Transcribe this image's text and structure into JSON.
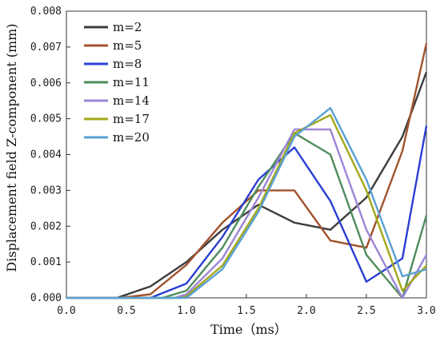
{
  "chart_data": {
    "type": "line",
    "xlabel": "Time（ms）",
    "ylabel": "Displacement field  Z-component  (mm)",
    "xlim": [
      0.0,
      3.0
    ],
    "ylim": [
      0.0,
      0.008
    ],
    "x_ticks": [
      "0.0",
      "0.5",
      "1.0",
      "1.5",
      "2.0",
      "2.5",
      "3.0"
    ],
    "y_ticks": [
      "0.000",
      "0.001",
      "0.002",
      "0.003",
      "0.004",
      "0.005",
      "0.006",
      "0.007",
      "0.008"
    ],
    "grid": false,
    "legend_position": "top-left",
    "series": [
      {
        "name": "m=2",
        "color": "#3d3d3d",
        "x": [
          0.0,
          0.42,
          0.7,
          1.0,
          1.3,
          1.6,
          1.9,
          2.2,
          2.5,
          2.8,
          3.0
        ],
        "y": [
          0.0,
          0.0,
          0.00032,
          0.001,
          0.0019,
          0.0026,
          0.0021,
          0.0019,
          0.0028,
          0.0045,
          0.0063
        ]
      },
      {
        "name": "m=5",
        "color": "#a0522d",
        "x": [
          0.0,
          0.45,
          0.7,
          1.0,
          1.3,
          1.6,
          1.9,
          2.2,
          2.5,
          2.8,
          3.0
        ],
        "y": [
          0.0,
          0.0,
          0.0001,
          0.00092,
          0.0021,
          0.003,
          0.003,
          0.0016,
          0.0014,
          0.0041,
          0.0071
        ]
      },
      {
        "name": "m=8",
        "color": "#2a3fd1",
        "x": [
          0.0,
          0.7,
          1.0,
          1.3,
          1.6,
          1.9,
          2.2,
          2.5,
          2.8,
          3.0
        ],
        "y": [
          0.0,
          0.0,
          0.0004,
          0.0017,
          0.0033,
          0.0042,
          0.0027,
          0.00045,
          0.0011,
          0.0048
        ]
      },
      {
        "name": "m=11",
        "color": "#4e8c5c",
        "x": [
          0.0,
          0.8,
          1.0,
          1.3,
          1.6,
          1.9,
          2.2,
          2.5,
          2.8,
          3.0
        ],
        "y": [
          0.0,
          0.0,
          0.0002,
          0.0014,
          0.0031,
          0.0046,
          0.004,
          0.0012,
          0.0,
          0.0023
        ]
      },
      {
        "name": "m=14",
        "color": "#9c85d6",
        "x": [
          0.0,
          0.9,
          1.0,
          1.3,
          1.6,
          1.9,
          2.2,
          2.5,
          2.8,
          3.0
        ],
        "y": [
          0.0,
          0.0,
          0.0001,
          0.0011,
          0.0028,
          0.0047,
          0.0047,
          0.0019,
          0.0,
          0.0012
        ]
      },
      {
        "name": "m=17",
        "color": "#a3a81a",
        "x": [
          0.0,
          0.95,
          1.0,
          1.3,
          1.6,
          1.9,
          2.2,
          2.5,
          2.8,
          3.0
        ],
        "y": [
          0.0,
          0.0,
          5e-05,
          0.0009,
          0.0025,
          0.0046,
          0.0051,
          0.003,
          0.0002,
          0.0009
        ]
      },
      {
        "name": "m=20",
        "color": "#5aa0d3",
        "x": [
          0.0,
          1.0,
          1.3,
          1.6,
          1.9,
          2.2,
          2.5,
          2.8,
          3.0
        ],
        "y": [
          0.0,
          0.0,
          0.0008,
          0.0024,
          0.0045,
          0.0053,
          0.0033,
          0.0006,
          0.0008
        ]
      }
    ]
  }
}
